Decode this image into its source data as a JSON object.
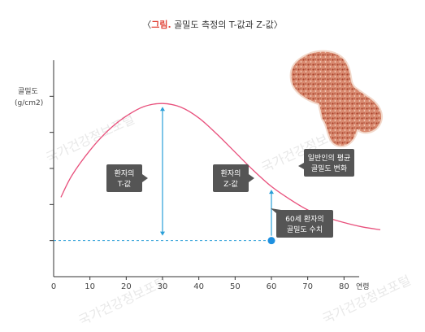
{
  "title": {
    "open": "〈",
    "accent": "그림.",
    "rest": " 골밀도 측정의 T-값과 Z-값〉"
  },
  "colors": {
    "curve": "#e8507c",
    "arrow": "#2a9fd8",
    "dashed": "#2a9fd8",
    "point": "#1e90e0",
    "callout_bg": "#555555",
    "accent": "#e0453a"
  },
  "watermark": "국가건강정보포털",
  "chart_data": {
    "type": "line",
    "title": "골밀도 측정의 T-값과 Z-값",
    "xlabel": "연령",
    "ylabel": "골밀도 (g/cm2)",
    "xlim": [
      0,
      90
    ],
    "x_ticks": [
      0,
      10,
      20,
      30,
      40,
      50,
      60,
      70,
      80
    ],
    "ylim": [
      0,
      6
    ],
    "series": [
      {
        "name": "일반인의 평균 골밀도 변화",
        "x": [
          2,
          5,
          10,
          15,
          20,
          25,
          30,
          35,
          40,
          45,
          50,
          55,
          60,
          65,
          70,
          75,
          80,
          85,
          90
        ],
        "y": [
          2.2,
          2.8,
          3.5,
          4.05,
          4.45,
          4.72,
          4.8,
          4.7,
          4.4,
          3.95,
          3.45,
          2.95,
          2.5,
          2.15,
          1.85,
          1.65,
          1.5,
          1.38,
          1.3
        ]
      }
    ],
    "reference_line": {
      "y": 1.0,
      "style": "dashed"
    },
    "patient_point": {
      "x": 60,
      "y": 1.0
    },
    "annotations": [
      {
        "label": "환자의 T-값",
        "x": 30,
        "from_y": 4.8,
        "to_y": 1.0
      },
      {
        "label": "환자의 Z-값",
        "x": 60,
        "from_y": 2.5,
        "to_y": 1.0
      }
    ],
    "callouts": {
      "t_value": [
        "환자의",
        "T-값"
      ],
      "z_value": [
        "환자의",
        "Z-값"
      ],
      "average": [
        "일반인의 평균",
        "골밀도 변화"
      ],
      "patient": [
        "60세 환자의",
        "골밀도 수치"
      ]
    }
  }
}
